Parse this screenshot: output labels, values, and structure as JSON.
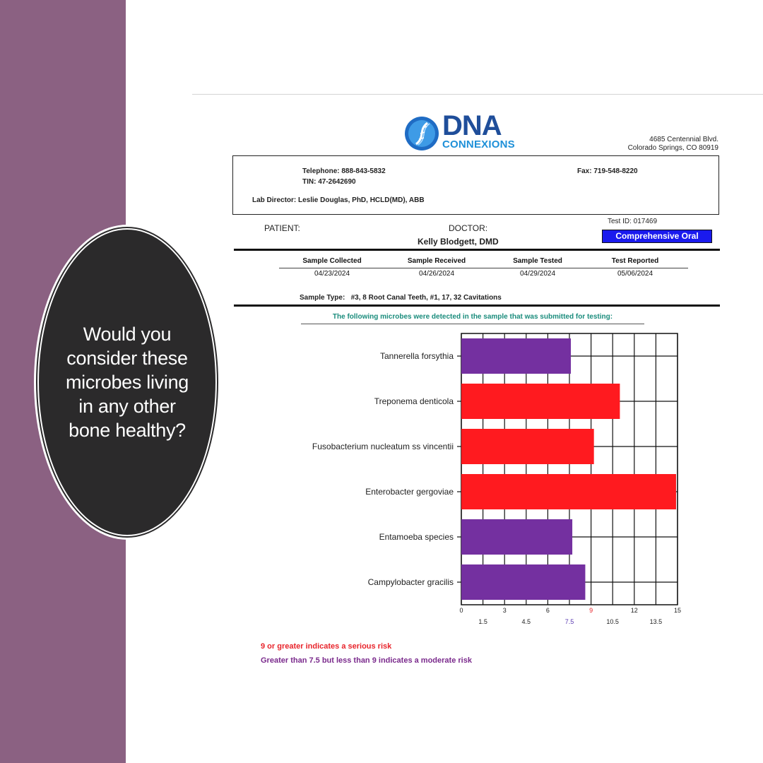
{
  "overlay": {
    "question": "Would you consider these microbes living in any other bone healthy?"
  },
  "logo": {
    "main": "DNA",
    "sub": "CONNEXIONS"
  },
  "address": {
    "line1": "4685 Centennial Blvd.",
    "line2": "Colorado Springs, CO 80919"
  },
  "contact": {
    "telephone": "Telephone:  888-843-5832",
    "tin": "TIN:   47-2642690",
    "fax": "Fax:  719-548-8220",
    "lab_director": "Lab Director:  Leslie Douglas, PhD, HCLD(MD), ABB"
  },
  "report": {
    "patient_label": "PATIENT:",
    "doctor_label": "DOCTOR:",
    "doctor_name": "Kelly Blodgett, DMD",
    "test_id": "Test ID: 017469",
    "test_type": "Comprehensive Oral"
  },
  "samples": [
    {
      "heading": "Sample Collected",
      "date": "04/23/2024"
    },
    {
      "heading": "Sample Received",
      "date": "04/26/2024"
    },
    {
      "heading": "Sample Tested",
      "date": "04/29/2024"
    },
    {
      "heading": "Test Reported",
      "date": "05/06/2024"
    }
  ],
  "sample_type": {
    "label": "Sample Type:",
    "value": "#3, 8 Root Canal Teeth, #1, 17, 32 Cavitations"
  },
  "detected_note": "The following microbes were detected in the sample that was submitted for testing:",
  "chart_data": {
    "type": "bar",
    "orientation": "horizontal",
    "categories": [
      "Tannerella forsythia",
      "Treponema denticola",
      "Fusobacterium nucleatum ss vincentii",
      "Enterobacter gergoviae",
      "Entamoeba species",
      "Campylobacter gracilis"
    ],
    "values": [
      7.6,
      11.0,
      9.2,
      14.9,
      7.7,
      8.6
    ],
    "bar_colors": [
      "#7430a0",
      "#ff1a1f",
      "#ff1a1f",
      "#ff1a1f",
      "#7430a0",
      "#7430a0"
    ],
    "xlim": [
      0,
      15
    ],
    "ticks_top_row": [
      "0",
      "3",
      "6",
      "9",
      "12",
      "15"
    ],
    "ticks_bottom_row": [
      "1.5",
      "4.5",
      "7.5",
      "10.5",
      "13.5"
    ],
    "highlight_ticks": {
      "9": "#e8242b",
      "7.5": "#5a3ab0"
    },
    "grid": true
  },
  "legend": {
    "serious": "9 or greater indicates a serious risk",
    "moderate": "Greater than 7.5 but less than 9 indicates a moderate risk"
  },
  "colors": {
    "side_bar": "#8b6182",
    "oval": "#2b2a2b",
    "serious": "#ff1a1f",
    "moderate": "#7430a0",
    "test_type_bg": "#1a1aee"
  }
}
